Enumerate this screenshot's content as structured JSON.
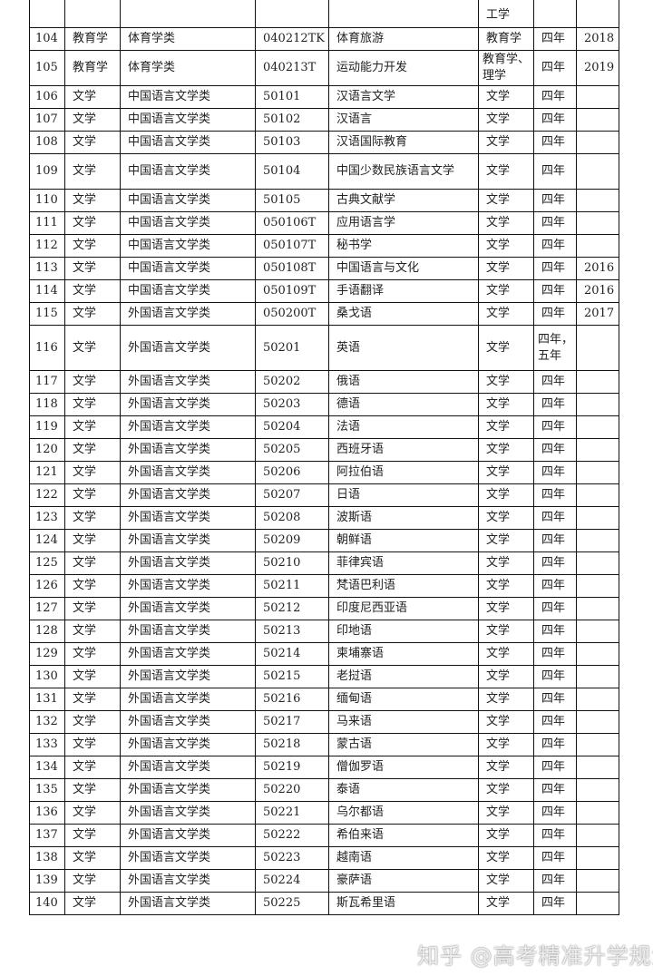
{
  "first_row_partial": {
    "degree": "工学"
  },
  "rows": [
    [
      "104",
      "教育学",
      "体育学类",
      "040212TK",
      "体育旅游",
      "教育学",
      "四年",
      "2018"
    ],
    [
      "105",
      "教育学",
      "体育学类",
      "040213T",
      "运动能力开发",
      "教育学、理学",
      "四年",
      "2019"
    ],
    [
      "106",
      "文学",
      "中国语言文学类",
      "50101",
      "汉语言文学",
      "文学",
      "四年",
      ""
    ],
    [
      "107",
      "文学",
      "中国语言文学类",
      "50102",
      "汉语言",
      "文学",
      "四年",
      ""
    ],
    [
      "108",
      "文学",
      "中国语言文学类",
      "50103",
      "汉语国际教育",
      "文学",
      "四年",
      ""
    ],
    [
      "109",
      "文学",
      "中国语言文学类",
      "50104",
      "中国少数民族语言文学",
      "文学",
      "四年",
      ""
    ],
    [
      "110",
      "文学",
      "中国语言文学类",
      "50105",
      "古典文献学",
      "文学",
      "四年",
      ""
    ],
    [
      "111",
      "文学",
      "中国语言文学类",
      "050106T",
      "应用语言学",
      "文学",
      "四年",
      ""
    ],
    [
      "112",
      "文学",
      "中国语言文学类",
      "050107T",
      "秘书学",
      "文学",
      "四年",
      ""
    ],
    [
      "113",
      "文学",
      "中国语言文学类",
      "050108T",
      "中国语言与文化",
      "文学",
      "四年",
      "2016"
    ],
    [
      "114",
      "文学",
      "中国语言文学类",
      "050109T",
      "手语翻译",
      "文学",
      "四年",
      "2016"
    ],
    [
      "115",
      "文学",
      "外国语言文学类",
      "050200T",
      "桑戈语",
      "文学",
      "四年",
      "2017"
    ],
    [
      "116",
      "文学",
      "外国语言文学类",
      "50201",
      "英语",
      "文学",
      "四年，五年",
      ""
    ],
    [
      "117",
      "文学",
      "外国语言文学类",
      "50202",
      "俄语",
      "文学",
      "四年",
      ""
    ],
    [
      "118",
      "文学",
      "外国语言文学类",
      "50203",
      "德语",
      "文学",
      "四年",
      ""
    ],
    [
      "119",
      "文学",
      "外国语言文学类",
      "50204",
      "法语",
      "文学",
      "四年",
      ""
    ],
    [
      "120",
      "文学",
      "外国语言文学类",
      "50205",
      "西班牙语",
      "文学",
      "四年",
      ""
    ],
    [
      "121",
      "文学",
      "外国语言文学类",
      "50206",
      "阿拉伯语",
      "文学",
      "四年",
      ""
    ],
    [
      "122",
      "文学",
      "外国语言文学类",
      "50207",
      "日语",
      "文学",
      "四年",
      ""
    ],
    [
      "123",
      "文学",
      "外国语言文学类",
      "50208",
      "波斯语",
      "文学",
      "四年",
      ""
    ],
    [
      "124",
      "文学",
      "外国语言文学类",
      "50209",
      "朝鲜语",
      "文学",
      "四年",
      ""
    ],
    [
      "125",
      "文学",
      "外国语言文学类",
      "50210",
      "菲律宾语",
      "文学",
      "四年",
      ""
    ],
    [
      "126",
      "文学",
      "外国语言文学类",
      "50211",
      "梵语巴利语",
      "文学",
      "四年",
      ""
    ],
    [
      "127",
      "文学",
      "外国语言文学类",
      "50212",
      "印度尼西亚语",
      "文学",
      "四年",
      ""
    ],
    [
      "128",
      "文学",
      "外国语言文学类",
      "50213",
      "印地语",
      "文学",
      "四年",
      ""
    ],
    [
      "129",
      "文学",
      "外国语言文学类",
      "50214",
      "柬埔寨语",
      "文学",
      "四年",
      ""
    ],
    [
      "130",
      "文学",
      "外国语言文学类",
      "50215",
      "老挝语",
      "文学",
      "四年",
      ""
    ],
    [
      "131",
      "文学",
      "外国语言文学类",
      "50216",
      "缅甸语",
      "文学",
      "四年",
      ""
    ],
    [
      "132",
      "文学",
      "外国语言文学类",
      "50217",
      "马来语",
      "文学",
      "四年",
      ""
    ],
    [
      "133",
      "文学",
      "外国语言文学类",
      "50218",
      "蒙古语",
      "文学",
      "四年",
      ""
    ],
    [
      "134",
      "文学",
      "外国语言文学类",
      "50219",
      "僧伽罗语",
      "文学",
      "四年",
      ""
    ],
    [
      "135",
      "文学",
      "外国语言文学类",
      "50220",
      "泰语",
      "文学",
      "四年",
      ""
    ],
    [
      "136",
      "文学",
      "外国语言文学类",
      "50221",
      "乌尔都语",
      "文学",
      "四年",
      ""
    ],
    [
      "137",
      "文学",
      "外国语言文学类",
      "50222",
      "希伯来语",
      "文学",
      "四年",
      ""
    ],
    [
      "138",
      "文学",
      "外国语言文学类",
      "50223",
      "越南语",
      "文学",
      "四年",
      ""
    ],
    [
      "139",
      "文学",
      "外国语言文学类",
      "50224",
      "豪萨语",
      "文学",
      "四年",
      ""
    ],
    [
      "140",
      "文学",
      "外国语言文学类",
      "50225",
      "斯瓦希里语",
      "文学",
      "四年",
      ""
    ]
  ],
  "watermark": "知乎 @高考精准升学规划"
}
